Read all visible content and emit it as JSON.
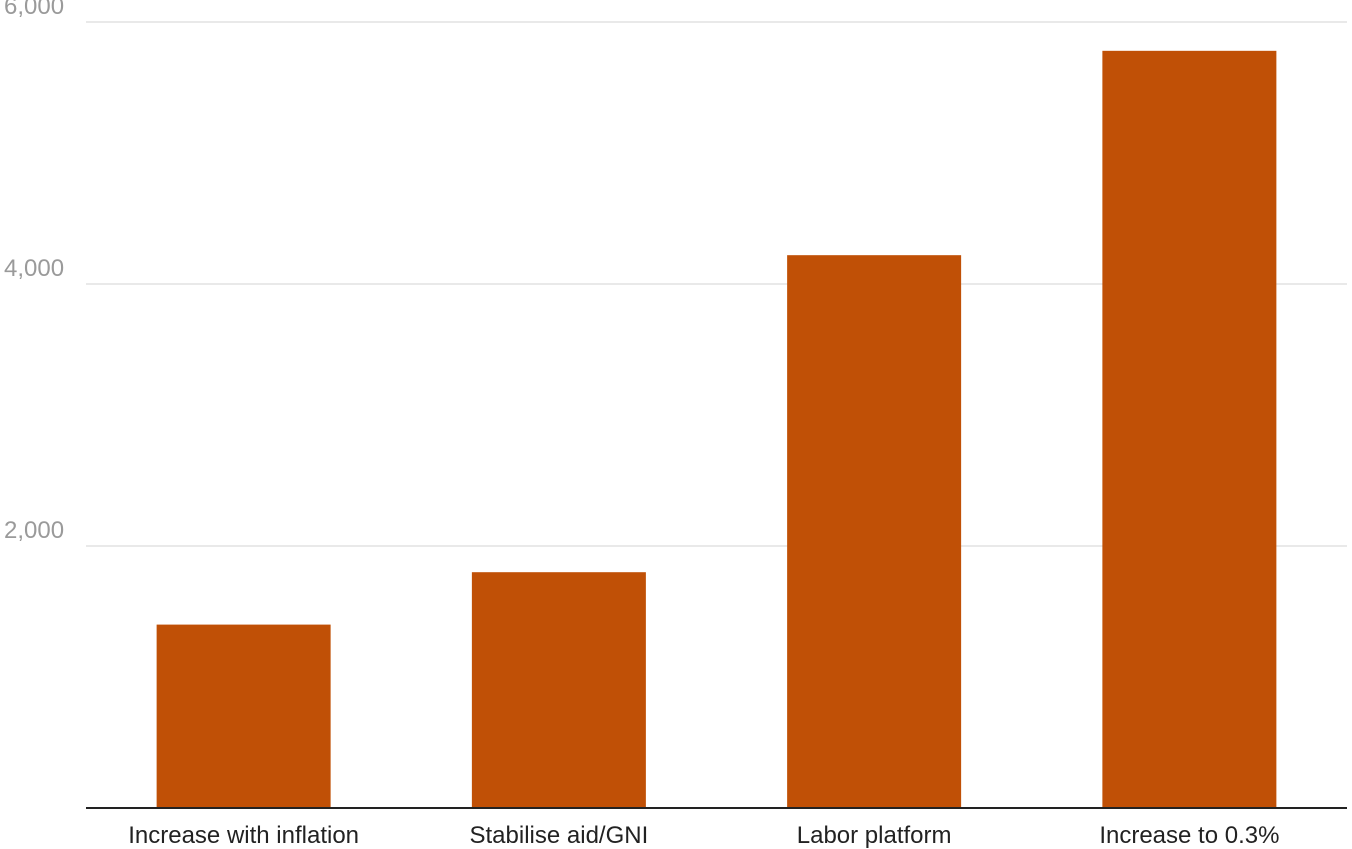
{
  "chart_data": {
    "type": "bar",
    "title": "",
    "xlabel": "",
    "ylabel": "",
    "categories": [
      "Increase with inflation",
      "Stabilise aid/GNI",
      "Labor platform",
      "Increase to 0.3%"
    ],
    "values": [
      1400,
      1800,
      4220,
      5780
    ],
    "ylim": [
      0,
      6000
    ],
    "y_ticks": [
      2000,
      4000,
      6000
    ],
    "y_tick_labels": [
      "2,000",
      "4,000",
      "6,000"
    ],
    "grid": true,
    "legend": "none",
    "bar_color": "#c05006"
  }
}
